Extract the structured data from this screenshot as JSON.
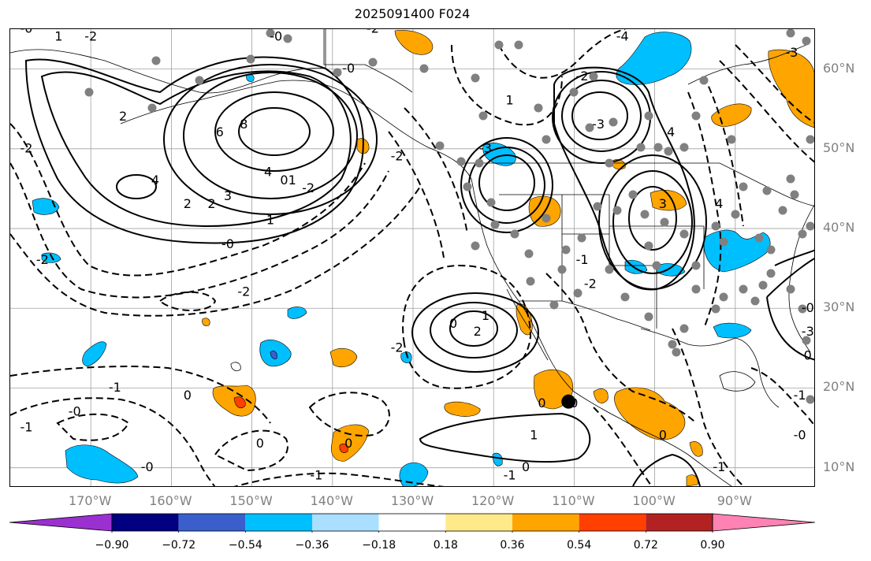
{
  "title": "2025091400 F024",
  "map": {
    "lon_range": [
      -180,
      -80
    ],
    "lat_range": [
      7.5,
      65
    ],
    "lat_ticks": [
      {
        "value": 60,
        "label": "60°N"
      },
      {
        "value": 50,
        "label": "50°N"
      },
      {
        "value": 40,
        "label": "40°N"
      },
      {
        "value": 30,
        "label": "30°N"
      },
      {
        "value": 20,
        "label": "20°N"
      },
      {
        "value": 10,
        "label": "10°N"
      }
    ],
    "lon_ticks": [
      {
        "value": -170,
        "label": "170°W"
      },
      {
        "value": -160,
        "label": "160°W"
      },
      {
        "value": -150,
        "label": "150°W"
      },
      {
        "value": -140,
        "label": "140°W"
      },
      {
        "value": -130,
        "label": "130°W"
      },
      {
        "value": -120,
        "label": "120°W"
      },
      {
        "value": -110,
        "label": "110°W"
      },
      {
        "value": -100,
        "label": "100°W"
      },
      {
        "value": -90,
        "label": "90°W"
      }
    ],
    "gridlines": true,
    "contour_labels": [
      {
        "text": "6",
        "lon": -154,
        "lat": 52
      },
      {
        "text": "8",
        "lon": -151,
        "lat": 53
      },
      {
        "text": "4",
        "lon": -148,
        "lat": 47
      },
      {
        "text": "3",
        "lon": -153,
        "lat": 44
      },
      {
        "text": "2",
        "lon": -158,
        "lat": 43
      },
      {
        "text": "2",
        "lon": -155,
        "lat": 43
      },
      {
        "text": "4",
        "lon": -162,
        "lat": 46
      },
      {
        "text": "2",
        "lon": -166,
        "lat": 54
      },
      {
        "text": "1",
        "lon": -145,
        "lat": 46
      },
      {
        "text": "0",
        "lon": -146,
        "lat": 46
      },
      {
        "text": "-2",
        "lon": -143,
        "lat": 45
      },
      {
        "text": "-1",
        "lon": -148,
        "lat": 41
      },
      {
        "text": "-0",
        "lon": -153,
        "lat": 38
      },
      {
        "text": "-2",
        "lon": -151,
        "lat": 32
      },
      {
        "text": "-2",
        "lon": -176,
        "lat": 36
      },
      {
        "text": "-2",
        "lon": -178,
        "lat": 50
      },
      {
        "text": "-2",
        "lon": -170,
        "lat": 64
      },
      {
        "text": "1",
        "lon": -174,
        "lat": 64
      },
      {
        "text": "-0",
        "lon": -178,
        "lat": 65
      },
      {
        "text": "-0",
        "lon": -147,
        "lat": 64
      },
      {
        "text": "-2",
        "lon": -135,
        "lat": 65
      },
      {
        "text": "-0",
        "lon": -138,
        "lat": 60
      },
      {
        "text": "-2",
        "lon": -132,
        "lat": 49
      },
      {
        "text": "1",
        "lon": -121,
        "lat": 29
      },
      {
        "text": "2",
        "lon": -122,
        "lat": 27
      },
      {
        "text": "0",
        "lon": -125,
        "lat": 28
      },
      {
        "text": "-2",
        "lon": -132,
        "lat": 25
      },
      {
        "text": "-1",
        "lon": -167,
        "lat": 20
      },
      {
        "text": "0",
        "lon": -158,
        "lat": 19
      },
      {
        "text": "-0",
        "lon": -172,
        "lat": 17
      },
      {
        "text": "-1",
        "lon": -178,
        "lat": 15
      },
      {
        "text": "0",
        "lon": -149,
        "lat": 13
      },
      {
        "text": "0",
        "lon": -138,
        "lat": 13
      },
      {
        "text": "-0",
        "lon": -163,
        "lat": 10
      },
      {
        "text": "-1",
        "lon": -142,
        "lat": 9
      },
      {
        "text": "0",
        "lon": -114,
        "lat": 18
      },
      {
        "text": "0",
        "lon": -110,
        "lat": 18
      },
      {
        "text": "1",
        "lon": -115,
        "lat": 14
      },
      {
        "text": "0",
        "lon": -116,
        "lat": 10
      },
      {
        "text": "-1",
        "lon": -118,
        "lat": 9
      },
      {
        "text": "0",
        "lon": -99,
        "lat": 14
      },
      {
        "text": "-1",
        "lon": -92,
        "lat": 10
      },
      {
        "text": "-2",
        "lon": -109,
        "lat": 59
      },
      {
        "text": "1",
        "lon": -118,
        "lat": 56
      },
      {
        "text": "-4",
        "lon": -104,
        "lat": 64
      },
      {
        "text": "-3",
        "lon": -107,
        "lat": 53
      },
      {
        "text": "4",
        "lon": -98,
        "lat": 52
      },
      {
        "text": "-3",
        "lon": -121,
        "lat": 50
      },
      {
        "text": "3",
        "lon": -99,
        "lat": 43
      },
      {
        "text": "4",
        "lon": -92,
        "lat": 43
      },
      {
        "text": "-1",
        "lon": -109,
        "lat": 36
      },
      {
        "text": "-2",
        "lon": -108,
        "lat": 33
      },
      {
        "text": "-3",
        "lon": -83,
        "lat": 62
      },
      {
        "text": "-0",
        "lon": -81,
        "lat": 30
      },
      {
        "text": "-3",
        "lon": -81,
        "lat": 27
      },
      {
        "text": "0",
        "lon": -81,
        "lat": 24
      },
      {
        "text": "-1",
        "lon": -82,
        "lat": 19
      },
      {
        "text": "-0",
        "lon": -82,
        "lat": 14
      }
    ],
    "marker": {
      "lon": -110.7,
      "lat": 18.3
    }
  },
  "colorbar": {
    "colors": [
      "#9b30d0",
      "#000080",
      "#3a5fcd",
      "#00bfff",
      "#aadfff",
      "#ffffff",
      "#ffea8a",
      "#ffa500",
      "#ff4000",
      "#b22222",
      "#ff82b4"
    ],
    "tick_labels": [
      "−0.90",
      "−0.72",
      "−0.54",
      "−0.36",
      "−0.18",
      "0.18",
      "0.36",
      "0.54",
      "0.72",
      "0.90"
    ],
    "extend": "both"
  },
  "colors": {
    "grid": "#a0a0a0",
    "tick_text": "#808080",
    "station_dots": "#808080",
    "contour": "#000000"
  }
}
